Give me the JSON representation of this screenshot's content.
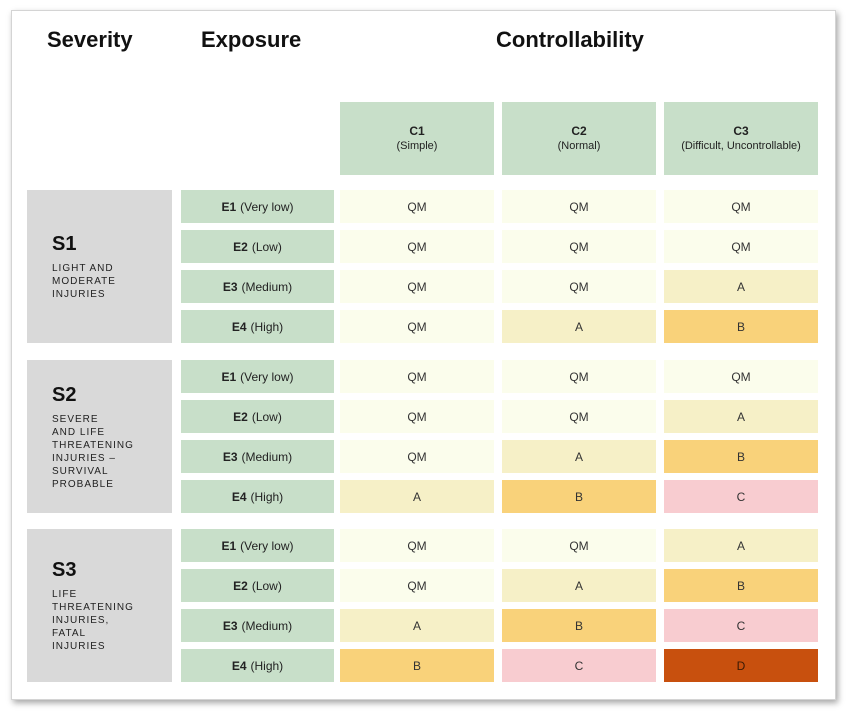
{
  "headers": {
    "severity": "Severity",
    "exposure": "Exposure",
    "controllability": "Controllability"
  },
  "controllability": [
    {
      "code": "C1",
      "desc": "(Simple)"
    },
    {
      "code": "C2",
      "desc": "(Normal)"
    },
    {
      "code": "C3",
      "desc": "(Difficult, Uncontrollable)"
    }
  ],
  "severity": [
    {
      "code": "S1",
      "lines": [
        "LIGHT AND",
        "MODERATE",
        "INJURIES"
      ]
    },
    {
      "code": "S2",
      "lines": [
        "SEVERE",
        "AND LIFE",
        "THREATENING",
        "INJURIES –",
        "SURVIVAL",
        "PROBABLE"
      ]
    },
    {
      "code": "S3",
      "lines": [
        "LIFE",
        "THREATENING",
        "INJURIES,",
        "FATAL",
        "INJURIES"
      ]
    }
  ],
  "exposure": [
    {
      "code": "E1",
      "desc": "(Very low)"
    },
    {
      "code": "E2",
      "desc": "(Low)"
    },
    {
      "code": "E3",
      "desc": "(Medium)"
    },
    {
      "code": "E4",
      "desc": "(High)"
    }
  ],
  "colors": {
    "QM": "#fbfdec",
    "A": "#f6f0c7",
    "B": "#f9d27a",
    "C": "#f8ccd0",
    "D": "#c8500e",
    "header_green": "#c8dfc9",
    "severity_gray": "#d9d9d9"
  },
  "chart_data": {
    "type": "table",
    "title": "",
    "columns": [
      "Severity",
      "Exposure",
      "C1 (Simple)",
      "C2 (Normal)",
      "C3 (Difficult, Uncontrollable)"
    ],
    "rows": [
      {
        "severity": "S1",
        "exposure": "E1",
        "values": [
          "QM",
          "QM",
          "QM"
        ]
      },
      {
        "severity": "S1",
        "exposure": "E2",
        "values": [
          "QM",
          "QM",
          "QM"
        ]
      },
      {
        "severity": "S1",
        "exposure": "E3",
        "values": [
          "QM",
          "QM",
          "A"
        ]
      },
      {
        "severity": "S1",
        "exposure": "E4",
        "values": [
          "QM",
          "A",
          "B"
        ]
      },
      {
        "severity": "S2",
        "exposure": "E1",
        "values": [
          "QM",
          "QM",
          "QM"
        ]
      },
      {
        "severity": "S2",
        "exposure": "E2",
        "values": [
          "QM",
          "QM",
          "A"
        ]
      },
      {
        "severity": "S2",
        "exposure": "E3",
        "values": [
          "QM",
          "A",
          "B"
        ]
      },
      {
        "severity": "S2",
        "exposure": "E4",
        "values": [
          "A",
          "B",
          "C"
        ]
      },
      {
        "severity": "S3",
        "exposure": "E1",
        "values": [
          "QM",
          "QM",
          "A"
        ]
      },
      {
        "severity": "S3",
        "exposure": "E2",
        "values": [
          "QM",
          "A",
          "B"
        ]
      },
      {
        "severity": "S3",
        "exposure": "E3",
        "values": [
          "A",
          "B",
          "C"
        ]
      },
      {
        "severity": "S3",
        "exposure": "E4",
        "values": [
          "B",
          "C",
          "D"
        ]
      }
    ]
  }
}
